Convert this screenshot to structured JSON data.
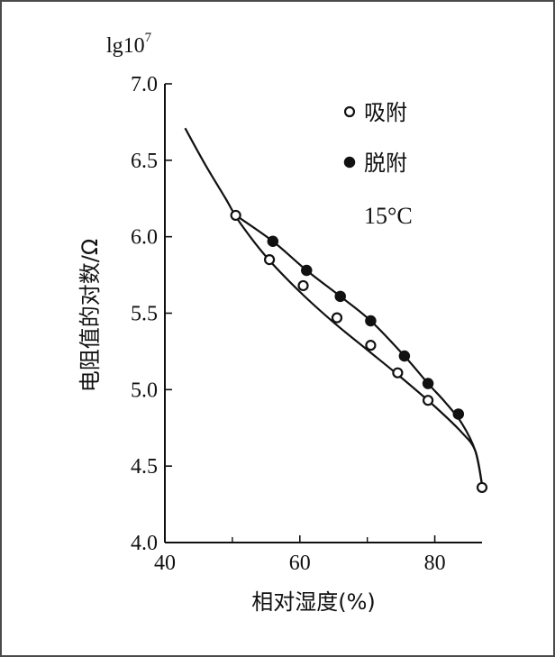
{
  "chart_data": {
    "type": "scatter",
    "title": "",
    "xlabel": "相对湿度(%)",
    "ylabel": "电阻值的对数/Ω",
    "y_unit_label": "lg10",
    "y_unit_exponent": "7",
    "xlim": [
      40,
      87
    ],
    "ylim": [
      4.0,
      7.0
    ],
    "x_ticks": [
      40,
      60,
      80
    ],
    "x_tick_labels": [
      "40",
      "60",
      "80"
    ],
    "y_ticks": [
      4.0,
      4.5,
      5.0,
      5.5,
      6.0,
      6.5,
      7.0
    ],
    "y_tick_labels": [
      "4.0",
      "4.5",
      "5.0",
      "5.5",
      "6.0",
      "6.5",
      "7.0"
    ],
    "grid": false,
    "legend_position": "top-right",
    "annotation": "15°C",
    "series": [
      {
        "name": "吸附",
        "marker": "open-circle",
        "x": [
          50.5,
          55.5,
          60.5,
          65.5,
          70.5,
          74.5,
          79,
          87
        ],
        "y": [
          6.14,
          5.85,
          5.68,
          5.47,
          5.29,
          5.11,
          4.93,
          4.36
        ]
      },
      {
        "name": "脱附",
        "marker": "filled-circle",
        "x": [
          56,
          61,
          66,
          70.5,
          75.5,
          79,
          83.5
        ],
        "y": [
          5.97,
          5.78,
          5.61,
          5.45,
          5.22,
          5.04,
          4.84
        ]
      }
    ],
    "curves": [
      {
        "id": "adsorption-curve",
        "x": [
          43,
          46,
          49,
          51,
          55,
          60,
          65,
          70,
          75,
          80,
          84,
          86,
          87
        ],
        "y": [
          6.71,
          6.47,
          6.25,
          6.1,
          5.87,
          5.64,
          5.44,
          5.26,
          5.08,
          4.89,
          4.72,
          4.6,
          4.38
        ]
      },
      {
        "id": "desorption-curve",
        "x": [
          50.5,
          56,
          61,
          66,
          70.5,
          75.5,
          79,
          81.5,
          84,
          86,
          87
        ],
        "y": [
          6.14,
          5.97,
          5.78,
          5.61,
          5.45,
          5.22,
          5.04,
          4.92,
          4.78,
          4.6,
          4.38
        ]
      }
    ],
    "colors": {
      "ink": "#111111",
      "frame": "#4a4a4a",
      "background": "#ffffff"
    }
  }
}
